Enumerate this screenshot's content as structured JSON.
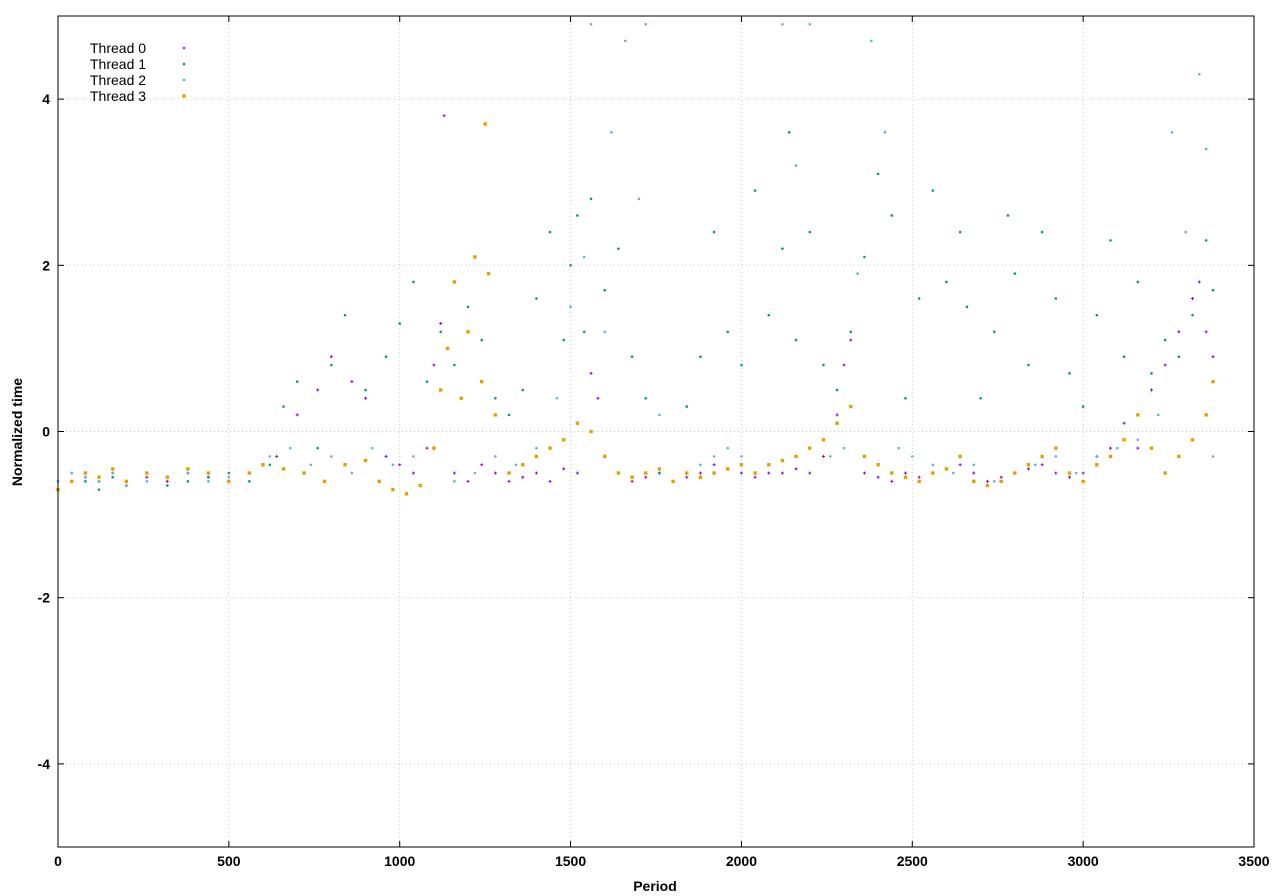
{
  "chart_data": {
    "type": "scatter",
    "title": "",
    "xlabel": "Period",
    "ylabel": "Normalized time",
    "xlim": [
      0,
      3500
    ],
    "ylim": [
      -5,
      5
    ],
    "xticks": [
      0,
      500,
      1000,
      1500,
      2000,
      2500,
      3000,
      3500
    ],
    "yticks": [
      -4,
      -2,
      0,
      2,
      4
    ],
    "grid": true,
    "legend_position": "top-left",
    "series": [
      {
        "name": "Thread 0",
        "color": "#9400d3",
        "marker": "plus",
        "x": [
          0,
          40,
          80,
          120,
          160,
          200,
          260,
          320,
          380,
          440,
          500,
          560,
          600,
          640,
          700,
          760,
          800,
          860,
          900,
          960,
          1000,
          1040,
          1080,
          1100,
          1120,
          1130,
          1160,
          1200,
          1240,
          1280,
          1320,
          1360,
          1400,
          1440,
          1480,
          1520,
          1560,
          1580,
          1600,
          1640,
          1680,
          1720,
          1760,
          1800,
          1840,
          1880,
          1920,
          1960,
          2000,
          2040,
          2080,
          2120,
          2160,
          2200,
          2240,
          2280,
          2300,
          2320,
          2360,
          2400,
          2440,
          2480,
          2520,
          2560,
          2600,
          2640,
          2680,
          2720,
          2760,
          2800,
          2840,
          2880,
          2920,
          2960,
          3000,
          3040,
          3080,
          3120,
          3160,
          3200,
          3240,
          3280,
          3320,
          3340,
          3360,
          3380
        ],
        "y": [
          -0.7,
          -0.6,
          -0.55,
          -0.6,
          -0.5,
          -0.65,
          -0.55,
          -0.6,
          -0.5,
          -0.55,
          -0.6,
          -0.5,
          -0.4,
          -0.3,
          0.2,
          0.5,
          0.9,
          0.6,
          0.4,
          -0.3,
          -0.4,
          -0.5,
          -0.2,
          0.8,
          1.3,
          3.8,
          -0.5,
          -0.6,
          -0.4,
          -0.5,
          -0.6,
          -0.55,
          -0.5,
          -0.6,
          -0.45,
          -0.5,
          0.7,
          0.4,
          -0.3,
          -0.5,
          -0.6,
          -0.55,
          -0.5,
          -0.6,
          -0.55,
          -0.5,
          -0.4,
          -0.45,
          -0.5,
          -0.55,
          -0.5,
          -0.5,
          -0.45,
          -0.5,
          -0.3,
          0.2,
          0.8,
          1.1,
          -0.5,
          -0.55,
          -0.6,
          -0.5,
          -0.55,
          -0.5,
          -0.45,
          -0.4,
          -0.5,
          -0.6,
          -0.55,
          -0.5,
          -0.45,
          -0.4,
          -0.5,
          -0.55,
          -0.5,
          -0.3,
          -0.2,
          0.1,
          -0.2,
          0.5,
          0.8,
          1.2,
          1.6,
          1.8,
          1.2,
          0.9
        ]
      },
      {
        "name": "Thread 1",
        "color": "#009e73",
        "marker": "dot",
        "x": [
          0,
          40,
          80,
          120,
          160,
          200,
          260,
          320,
          380,
          440,
          500,
          560,
          620,
          660,
          700,
          760,
          800,
          840,
          900,
          960,
          1000,
          1040,
          1080,
          1120,
          1160,
          1200,
          1240,
          1280,
          1320,
          1360,
          1400,
          1440,
          1480,
          1500,
          1520,
          1540,
          1560,
          1600,
          1640,
          1680,
          1720,
          1760,
          1800,
          1840,
          1880,
          1920,
          1960,
          2000,
          2040,
          2080,
          2120,
          2140,
          2160,
          2200,
          2240,
          2280,
          2320,
          2360,
          2400,
          2440,
          2480,
          2520,
          2560,
          2600,
          2640,
          2660,
          2700,
          2740,
          2780,
          2800,
          2840,
          2880,
          2920,
          2960,
          3000,
          3040,
          3080,
          3120,
          3160,
          3200,
          3240,
          3280,
          3320,
          3360,
          3380
        ],
        "y": [
          -0.6,
          -0.5,
          -0.6,
          -0.7,
          -0.55,
          -0.6,
          -0.5,
          -0.65,
          -0.6,
          -0.55,
          -0.5,
          -0.6,
          -0.4,
          0.3,
          0.6,
          -0.2,
          0.8,
          1.4,
          0.5,
          0.9,
          1.3,
          1.8,
          0.6,
          1.2,
          0.8,
          1.5,
          1.1,
          0.4,
          0.2,
          0.5,
          1.6,
          2.4,
          1.1,
          2.0,
          2.6,
          1.2,
          2.8,
          1.7,
          2.2,
          0.9,
          0.4,
          -0.5,
          -0.6,
          0.3,
          0.9,
          2.4,
          1.2,
          0.8,
          2.9,
          1.4,
          2.2,
          3.6,
          1.1,
          2.4,
          0.8,
          0.5,
          1.2,
          2.1,
          3.1,
          2.6,
          0.4,
          1.6,
          2.9,
          1.8,
          2.4,
          1.5,
          0.4,
          1.2,
          2.6,
          1.9,
          0.8,
          2.4,
          1.6,
          0.7,
          0.3,
          1.4,
          2.3,
          0.9,
          1.8,
          0.7,
          1.1,
          0.9,
          1.4,
          2.3,
          1.7
        ]
      },
      {
        "name": "Thread 2",
        "color": "#56b4e9",
        "marker": "dot",
        "x": [
          0,
          40,
          80,
          120,
          160,
          200,
          260,
          320,
          380,
          440,
          500,
          560,
          620,
          680,
          740,
          800,
          860,
          920,
          980,
          1040,
          1100,
          1160,
          1220,
          1280,
          1340,
          1400,
          1460,
          1500,
          1540,
          1560,
          1600,
          1620,
          1660,
          1700,
          1720,
          1760,
          1800,
          1840,
          1880,
          1920,
          1960,
          2000,
          2080,
          2120,
          2160,
          2200,
          2260,
          2300,
          2340,
          2380,
          2420,
          2460,
          2500,
          2560,
          2620,
          2680,
          2740,
          2800,
          2860,
          2920,
          2980,
          3040,
          3100,
          3160,
          3220,
          3260,
          3300,
          3340,
          3360,
          3380
        ],
        "y": [
          -0.6,
          -0.5,
          -0.55,
          -0.6,
          -0.5,
          -0.65,
          -0.6,
          -0.55,
          -0.5,
          -0.6,
          -0.55,
          -0.5,
          -0.3,
          -0.2,
          -0.4,
          -0.3,
          -0.5,
          -0.2,
          -0.4,
          -0.3,
          -0.2,
          -0.6,
          -0.5,
          -0.3,
          -0.4,
          -0.2,
          0.4,
          1.5,
          2.1,
          4.9,
          1.2,
          3.6,
          4.7,
          2.8,
          4.9,
          0.2,
          -0.6,
          -0.5,
          -0.4,
          -0.3,
          -0.2,
          -0.3,
          -0.4,
          4.9,
          3.2,
          4.9,
          -0.3,
          -0.2,
          1.9,
          4.7,
          3.6,
          -0.2,
          -0.3,
          -0.4,
          -0.5,
          -0.4,
          -0.6,
          -0.5,
          -0.4,
          -0.3,
          -0.5,
          -0.3,
          -0.2,
          -0.1,
          0.2,
          3.6,
          2.4,
          4.3,
          3.4,
          -0.3
        ]
      },
      {
        "name": "Thread 3",
        "color": "#e69f00",
        "marker": "square",
        "x": [
          0,
          40,
          80,
          120,
          160,
          200,
          260,
          320,
          380,
          440,
          500,
          560,
          600,
          660,
          720,
          780,
          840,
          900,
          940,
          980,
          1020,
          1060,
          1100,
          1120,
          1140,
          1160,
          1180,
          1200,
          1220,
          1240,
          1250,
          1260,
          1280,
          1320,
          1360,
          1400,
          1440,
          1480,
          1520,
          1560,
          1600,
          1640,
          1680,
          1720,
          1760,
          1800,
          1840,
          1880,
          1920,
          1960,
          2000,
          2040,
          2080,
          2120,
          2160,
          2200,
          2240,
          2280,
          2320,
          2360,
          2400,
          2440,
          2480,
          2520,
          2560,
          2600,
          2640,
          2680,
          2720,
          2760,
          2800,
          2840,
          2880,
          2920,
          2960,
          3000,
          3040,
          3080,
          3120,
          3160,
          3200,
          3240,
          3280,
          3320,
          3360,
          3380
        ],
        "y": [
          -0.7,
          -0.6,
          -0.5,
          -0.55,
          -0.45,
          -0.6,
          -0.5,
          -0.55,
          -0.45,
          -0.5,
          -0.6,
          -0.5,
          -0.4,
          -0.45,
          -0.5,
          -0.6,
          -0.4,
          -0.35,
          -0.6,
          -0.7,
          -0.75,
          -0.65,
          -0.2,
          0.5,
          1.0,
          1.8,
          0.4,
          1.2,
          2.1,
          0.6,
          3.7,
          1.9,
          0.2,
          -0.5,
          -0.4,
          -0.3,
          -0.2,
          -0.1,
          0.1,
          0.0,
          -0.3,
          -0.5,
          -0.55,
          -0.5,
          -0.45,
          -0.6,
          -0.5,
          -0.55,
          -0.5,
          -0.45,
          -0.4,
          -0.5,
          -0.4,
          -0.35,
          -0.3,
          -0.2,
          -0.1,
          0.1,
          0.3,
          -0.3,
          -0.4,
          -0.5,
          -0.55,
          -0.6,
          -0.5,
          -0.45,
          -0.3,
          -0.6,
          -0.65,
          -0.6,
          -0.5,
          -0.4,
          -0.3,
          -0.2,
          -0.5,
          -0.6,
          -0.4,
          -0.3,
          -0.1,
          0.2,
          -0.2,
          -0.5,
          -0.3,
          -0.1,
          0.2,
          0.6
        ]
      }
    ]
  }
}
